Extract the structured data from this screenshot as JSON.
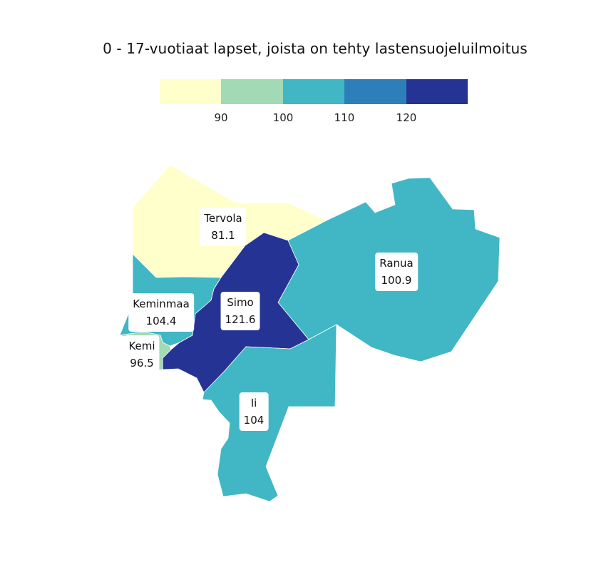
{
  "title": "0 - 17-vuotiaat lapset, joista on tehty lastensuojeluilmoitus",
  "legend": {
    "colors": [
      "#ffffcc",
      "#a1dab4",
      "#41b6c4",
      "#2c7fb8",
      "#253494"
    ],
    "ticks": [
      "90",
      "100",
      "110",
      "120"
    ]
  },
  "regions": [
    {
      "name": "Tervola",
      "value": "81.1",
      "color": "#ffffcc"
    },
    {
      "name": "Ranua",
      "value": "100.9",
      "color": "#41b6c4"
    },
    {
      "name": "Keminmaa",
      "value": "104.4",
      "color": "#41b6c4"
    },
    {
      "name": "Simo",
      "value": "121.6",
      "color": "#253494"
    },
    {
      "name": "Kemi",
      "value": "96.5",
      "color": "#a1dab4"
    },
    {
      "name": "Ii",
      "value": "104",
      "color": "#41b6c4"
    }
  ]
}
